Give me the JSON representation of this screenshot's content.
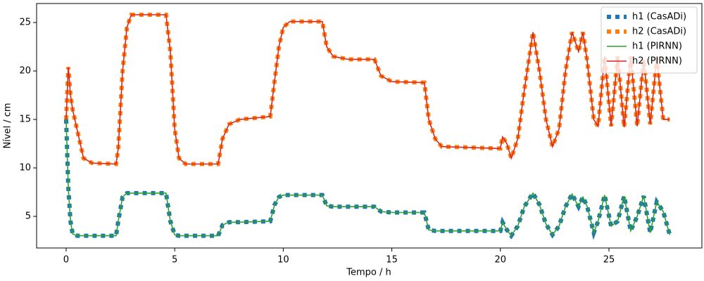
{
  "chart_data": {
    "type": "line",
    "xlabel": "Tempo / h",
    "ylabel": "Nível / cm",
    "x": [
      0,
      0.1,
      0.2,
      0.3,
      0.5,
      0.8,
      1.2,
      2.3,
      2.4,
      2.6,
      2.8,
      3.0,
      4.6,
      4.8,
      5.0,
      5.2,
      5.5,
      7.0,
      7.2,
      7.5,
      8.0,
      9.4,
      9.6,
      9.8,
      10.0,
      10.3,
      11.8,
      12.0,
      12.3,
      13.0,
      14.2,
      14.5,
      15.0,
      16.5,
      16.7,
      17.0,
      17.3,
      20.0,
      20.1,
      20.3,
      20.5,
      20.8,
      21.1,
      21.5,
      21.8,
      22.1,
      22.4,
      22.7,
      23.0,
      23.3,
      23.6,
      23.8,
      24.0,
      24.3,
      24.5,
      24.8,
      25.1,
      25.4,
      25.7,
      26.0,
      26.3,
      26.6,
      26.9,
      27.2,
      27.5,
      27.8
    ],
    "series": [
      {
        "name": "h1 (CasADi)",
        "color": "#1f77b4",
        "style": "dashed",
        "values": [
          15,
          8,
          4.5,
          3.2,
          3,
          3,
          3,
          3,
          4.5,
          7,
          7.4,
          7.4,
          7.4,
          4.5,
          3.1,
          3,
          3,
          3,
          4.1,
          4.4,
          4.4,
          4.5,
          6.2,
          7.0,
          7.2,
          7.2,
          7.2,
          6.1,
          6.0,
          6.0,
          6.0,
          5.5,
          5.4,
          5.4,
          3.6,
          3.5,
          3.5,
          3.5,
          4.4,
          3.6,
          3.0,
          4,
          6,
          7.4,
          6.2,
          4.2,
          3.1,
          4,
          6,
          7.3,
          6,
          7,
          6,
          3.3,
          4.5,
          7.2,
          4,
          4.5,
          7.1,
          3.5,
          5,
          7.1,
          3.3,
          6.5,
          5.5,
          3.1
        ]
      },
      {
        "name": "h2 (CasADi)",
        "color": "#ff7f0e",
        "style": "dashed",
        "values": [
          15,
          20.4,
          17.5,
          16,
          14,
          11,
          10.5,
          10.4,
          12,
          20,
          24.5,
          25.8,
          25.8,
          22,
          14,
          11,
          10.4,
          10.4,
          13,
          14.5,
          15,
          15.3,
          19,
          22.5,
          24.5,
          25.1,
          25.1,
          22.5,
          21.5,
          21.2,
          21.2,
          19.5,
          18.9,
          18.8,
          15,
          13,
          12.2,
          12.0,
          13.2,
          12.5,
          11,
          13,
          18,
          24,
          20,
          15,
          12.2,
          14,
          20,
          24,
          22,
          24,
          21,
          15,
          14.3,
          21.5,
          14.3,
          21.5,
          14.2,
          21.5,
          14.3,
          21.2,
          14.5,
          21.3,
          15,
          15
        ]
      },
      {
        "name": "h1 (PIRNN)",
        "color": "#2ca02c",
        "style": "solid",
        "values": [
          15,
          8,
          4.5,
          3.2,
          3,
          3,
          3,
          3,
          4.5,
          7,
          7.4,
          7.4,
          7.4,
          4.5,
          3.1,
          3,
          3,
          3,
          4.1,
          4.4,
          4.4,
          4.5,
          6.2,
          7.0,
          7.2,
          7.2,
          7.2,
          6.1,
          6.0,
          6.0,
          6.0,
          5.5,
          5.4,
          5.4,
          3.6,
          3.5,
          3.5,
          3.5,
          4.4,
          3.6,
          3.0,
          4,
          6,
          7.4,
          6.2,
          4.2,
          3.1,
          4,
          6,
          7.3,
          6,
          7,
          6,
          3.3,
          4.5,
          7.2,
          4,
          4.5,
          7.1,
          3.5,
          5,
          7.1,
          3.3,
          6.5,
          5.5,
          3.1
        ]
      },
      {
        "name": "h2 (PIRNN)",
        "color": "#d62728",
        "style": "solid",
        "values": [
          15,
          20.4,
          17.5,
          16,
          14,
          11,
          10.5,
          10.4,
          12,
          20,
          24.5,
          25.8,
          25.8,
          22,
          14,
          11,
          10.4,
          10.4,
          13,
          14.5,
          15,
          15.3,
          19,
          22.5,
          24.5,
          25.1,
          25.1,
          22.5,
          21.5,
          21.2,
          21.2,
          19.5,
          18.9,
          18.8,
          15,
          13,
          12.2,
          12.0,
          13.2,
          12.5,
          11,
          13,
          18,
          24,
          20,
          15,
          12.2,
          14,
          20,
          24,
          22,
          24,
          21,
          15,
          14.3,
          21.5,
          14.3,
          21.5,
          14.2,
          21.5,
          14.3,
          21.2,
          14.5,
          21.3,
          15,
          15
        ]
      }
    ],
    "xlim": [
      -1.36,
      29.28
    ],
    "xticks": [
      0,
      5,
      10,
      15,
      20,
      25
    ],
    "ylim": [
      1.74,
      26.96
    ],
    "yticks": [
      5,
      10,
      15,
      20,
      25
    ],
    "legend": "upper right"
  }
}
